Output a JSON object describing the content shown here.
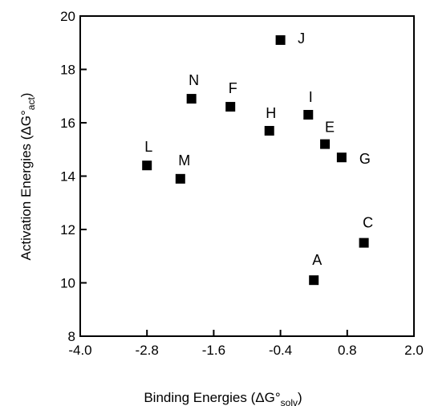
{
  "chart_data": {
    "type": "scatter",
    "xlabel": {
      "main": "Binding  Energies  (ΔG°",
      "sub": "solv",
      "close": ")"
    },
    "ylabel": {
      "main": "Activation  Energies  (ΔG°",
      "sub": "act",
      "close": ")"
    },
    "xlim": [
      -4.0,
      2.0
    ],
    "ylim": [
      8,
      20
    ],
    "xticks": [
      -4.0,
      -2.8,
      -1.6,
      -0.4,
      0.8,
      2.0
    ],
    "xtick_labels": [
      "-4.0",
      "-2.8",
      "-1.6",
      "-0.4",
      "0.8",
      "2.0"
    ],
    "yticks": [
      8,
      10,
      12,
      14,
      16,
      18,
      20
    ],
    "ytick_labels": [
      "8",
      "10",
      "12",
      "14",
      "16",
      "18",
      "20"
    ],
    "grid": false,
    "marker": "square",
    "marker_color": "#000000",
    "points": [
      {
        "label": "J",
        "x": -0.4,
        "y": 19.1
      },
      {
        "label": "N",
        "x": -2.0,
        "y": 16.9
      },
      {
        "label": "F",
        "x": -1.3,
        "y": 16.6
      },
      {
        "label": "H",
        "x": -0.6,
        "y": 15.7
      },
      {
        "label": "I",
        "x": 0.1,
        "y": 16.3
      },
      {
        "label": "E",
        "x": 0.4,
        "y": 15.2
      },
      {
        "label": "G",
        "x": 0.7,
        "y": 14.7
      },
      {
        "label": "L",
        "x": -2.8,
        "y": 14.4
      },
      {
        "label": "M",
        "x": -2.2,
        "y": 13.9
      },
      {
        "label": "C",
        "x": 1.1,
        "y": 11.5
      },
      {
        "label": "A",
        "x": 0.2,
        "y": 10.1
      }
    ]
  }
}
